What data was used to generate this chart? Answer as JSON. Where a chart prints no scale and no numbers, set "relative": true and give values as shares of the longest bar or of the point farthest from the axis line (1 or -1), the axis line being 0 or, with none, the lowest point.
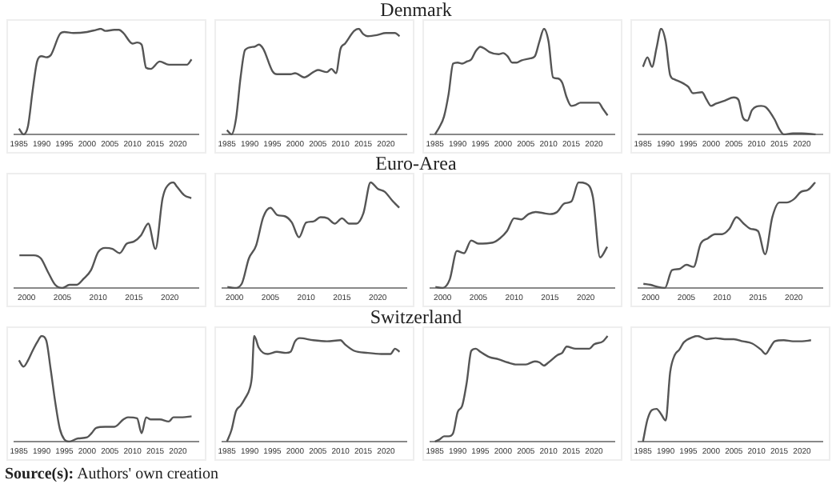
{
  "chart_data": [
    {
      "type": "line",
      "relative": true,
      "xlim": [
        1984,
        2024.5
      ],
      "xticks": [
        1985,
        1990,
        1995,
        2000,
        2005,
        2010,
        2015,
        2020
      ],
      "tick_labels": "x",
      "grid": false,
      "legend": false,
      "marker": "none",
      "series": [
        {
          "color": "#555555",
          "x": [
            1985,
            1986,
            1987,
            1988,
            1989,
            1990,
            1991,
            1992,
            1994,
            1995,
            1997,
            2000,
            2002,
            2003,
            2004,
            2006,
            2007,
            2008,
            2010,
            2011,
            2012,
            2013,
            2014,
            2016,
            2018,
            2020,
            2022,
            2023
          ],
          "values": [
            0.055,
            0,
            0.08,
            0.41,
            0.69,
            0.74,
            0.73,
            0.75,
            0.95,
            0.97,
            0.96,
            0.97,
            0.99,
            1,
            0.98,
            0.99,
            0.99,
            0.96,
            0.86,
            0.87,
            0.85,
            0.63,
            0.62,
            0.69,
            0.66,
            0.66,
            0.66,
            0.71
          ]
        }
      ]
    },
    {
      "type": "line",
      "title": "Denmark",
      "relative": true,
      "xlim": [
        1984,
        2024.5
      ],
      "xticks": [
        1985,
        1990,
        1995,
        2000,
        2005,
        2010,
        2015,
        2020
      ],
      "tick_labels": "x",
      "grid": false,
      "legend": false,
      "marker": "none",
      "series": [
        {
          "color": "#555555",
          "x": [
            1985,
            1986,
            1987,
            1988,
            1989,
            1991,
            1992,
            1993,
            1995,
            1996,
            1999,
            2000,
            2002,
            2004,
            2005,
            2007,
            2008,
            2009,
            2010,
            2011,
            2013,
            2014,
            2015,
            2016,
            2018,
            2020,
            2022,
            2023
          ],
          "values": [
            0.04,
            0,
            0.15,
            0.54,
            0.8,
            0.83,
            0.85,
            0.81,
            0.6,
            0.57,
            0.57,
            0.58,
            0.54,
            0.59,
            0.61,
            0.59,
            0.62,
            0.58,
            0.81,
            0.86,
            0.98,
            1,
            0.95,
            0.93,
            0.94,
            0.96,
            0.96,
            0.93
          ]
        }
      ]
    },
    {
      "type": "line",
      "relative": true,
      "xlim": [
        1984,
        2024.5
      ],
      "xticks": [
        1985,
        1990,
        1995,
        2000,
        2005,
        2010,
        2015,
        2020
      ],
      "tick_labels": "x",
      "grid": false,
      "legend": false,
      "marker": "none",
      "series": [
        {
          "color": "#555555",
          "x": [
            1985,
            1986,
            1987,
            1988,
            1989,
            1990,
            1991,
            1992,
            1993,
            1994,
            1995,
            1996,
            1997,
            1999,
            2000,
            2001,
            2002,
            2003,
            2004,
            2006,
            2007,
            2008,
            2009,
            2010,
            2011,
            2012,
            2013,
            2014,
            2015,
            2016,
            2017,
            2019,
            2021,
            2022,
            2023
          ],
          "values": [
            0,
            0.07,
            0.17,
            0.38,
            0.67,
            0.68,
            0.67,
            0.69,
            0.71,
            0.79,
            0.83,
            0.81,
            0.78,
            0.76,
            0.77,
            0.74,
            0.68,
            0.68,
            0.7,
            0.72,
            0.74,
            0.88,
            1,
            0.88,
            0.54,
            0.53,
            0.49,
            0.35,
            0.27,
            0.28,
            0.3,
            0.3,
            0.3,
            0.24,
            0.18
          ]
        }
      ]
    },
    {
      "type": "line",
      "relative": true,
      "xlim": [
        1984,
        2024.5
      ],
      "xticks": [
        1985,
        1990,
        1995,
        2000,
        2005,
        2010,
        2015,
        2020
      ],
      "tick_labels": "x",
      "grid": false,
      "legend": false,
      "marker": "none",
      "series": [
        {
          "color": "#555555",
          "x": [
            1985,
            1986,
            1987,
            1988,
            1989,
            1990,
            1991,
            1992,
            1994,
            1995,
            1996,
            1998,
            1999,
            2000,
            2001,
            2003,
            2005,
            2006,
            2007,
            2008,
            2009,
            2011,
            2012,
            2014,
            2015,
            2016,
            2018,
            2020,
            2023
          ],
          "values": [
            0.64,
            0.73,
            0.64,
            0.82,
            1,
            0.88,
            0.56,
            0.52,
            0.48,
            0.45,
            0.39,
            0.4,
            0.33,
            0.27,
            0.29,
            0.32,
            0.35,
            0.33,
            0.16,
            0.13,
            0.23,
            0.27,
            0.26,
            0.14,
            0.05,
            0,
            0.01,
            0.01,
            0
          ]
        }
      ]
    },
    {
      "type": "line",
      "relative": true,
      "xlim": [
        1998.3,
        2024
      ],
      "xticks": [
        2000,
        2005,
        2010,
        2015,
        2020
      ],
      "tick_labels": "x",
      "grid": false,
      "legend": false,
      "marker": "none",
      "series": [
        {
          "color": "#555555",
          "x": [
            1999,
            2000,
            2001,
            2002,
            2003,
            2004,
            2005,
            2006,
            2007,
            2008,
            2009,
            2010,
            2011,
            2012,
            2013,
            2014,
            2015,
            2016,
            2017,
            2018,
            2019,
            2020,
            2020.5,
            2021,
            2022,
            2023
          ],
          "values": [
            0.31,
            0.31,
            0.31,
            0.28,
            0.15,
            0.03,
            0,
            0.03,
            0.03,
            0.09,
            0.17,
            0.34,
            0.38,
            0.37,
            0.33,
            0.42,
            0.44,
            0.5,
            0.61,
            0.37,
            0.85,
            0.99,
            1,
            0.96,
            0.88,
            0.85
          ]
        }
      ]
    },
    {
      "type": "line",
      "title": "Euro-Area",
      "relative": true,
      "xlim": [
        1998.3,
        2024
      ],
      "xticks": [
        2000,
        2005,
        2010,
        2015,
        2020
      ],
      "tick_labels": "x",
      "grid": false,
      "legend": false,
      "marker": "none",
      "series": [
        {
          "color": "#555555",
          "x": [
            1999,
            2000,
            2001,
            2002,
            2003,
            2004,
            2005,
            2006,
            2007,
            2008,
            2009,
            2010,
            2011,
            2012,
            2013,
            2014,
            2015,
            2016,
            2017,
            2018,
            2019,
            2020,
            2021,
            2022,
            2023
          ],
          "values": [
            0.01,
            0,
            0.04,
            0.28,
            0.4,
            0.67,
            0.76,
            0.69,
            0.68,
            0.62,
            0.48,
            0.62,
            0.63,
            0.67,
            0.66,
            0.61,
            0.66,
            0.61,
            0.61,
            0.71,
            1,
            0.94,
            0.91,
            0.83,
            0.76
          ]
        }
      ]
    },
    {
      "type": "line",
      "relative": true,
      "xlim": [
        1998.3,
        2024
      ],
      "xticks": [
        2000,
        2005,
        2010,
        2015,
        2020
      ],
      "tick_labels": "x",
      "grid": false,
      "legend": false,
      "marker": "none",
      "series": [
        {
          "color": "#555555",
          "x": [
            1999,
            2000,
            2001,
            2002,
            2003,
            2004,
            2005,
            2007,
            2008,
            2009,
            2010,
            2011,
            2012,
            2013,
            2014,
            2015,
            2016,
            2017,
            2018,
            2019,
            2020,
            2021,
            2022,
            2023
          ],
          "values": [
            0.01,
            0,
            0.08,
            0.35,
            0.33,
            0.45,
            0.42,
            0.43,
            0.47,
            0.54,
            0.66,
            0.65,
            0.7,
            0.72,
            0.71,
            0.7,
            0.72,
            0.8,
            0.82,
            1,
            0.99,
            0.86,
            0.29,
            0.39
          ]
        }
      ]
    },
    {
      "type": "line",
      "relative": true,
      "xlim": [
        1998.3,
        2024
      ],
      "xticks": [
        2000,
        2005,
        2010,
        2015,
        2020
      ],
      "tick_labels": "x",
      "grid": false,
      "legend": false,
      "marker": "none",
      "series": [
        {
          "color": "#555555",
          "x": [
            1999,
            2000,
            2001,
            2002,
            2003,
            2004,
            2005,
            2006,
            2007,
            2008,
            2009,
            2010,
            2011,
            2012,
            2013,
            2014,
            2015,
            2016,
            2017,
            2018,
            2019,
            2020,
            2021,
            2022,
            2023
          ],
          "values": [
            0.04,
            0.03,
            0.01,
            0,
            0.17,
            0.18,
            0.22,
            0.2,
            0.42,
            0.47,
            0.51,
            0.51,
            0.56,
            0.67,
            0.61,
            0.56,
            0.54,
            0.32,
            0.67,
            0.81,
            0.81,
            0.84,
            0.91,
            0.93,
            1
          ]
        }
      ]
    },
    {
      "type": "line",
      "relative": true,
      "xlim": [
        1984,
        2024.5
      ],
      "xticks": [
        1985,
        1990,
        1995,
        2000,
        2005,
        2010,
        2015,
        2020
      ],
      "tick_labels": "x",
      "grid": false,
      "legend": false,
      "marker": "none",
      "annotations": [
        "Source(s): Authors' own creation"
      ],
      "series": [
        {
          "color": "#555555",
          "x": [
            1985,
            1986,
            1987,
            1988,
            1989,
            1990,
            1991,
            1992,
            1993,
            1994,
            1995,
            1996,
            1998,
            2000,
            2001,
            2002,
            2004,
            2006,
            2008,
            2009,
            2011,
            2012,
            2013,
            2014,
            2016,
            2018,
            2019,
            2021,
            2023
          ],
          "values": [
            0.77,
            0.71,
            0.77,
            0.86,
            0.94,
            1,
            0.96,
            0.68,
            0.37,
            0.12,
            0.02,
            0,
            0.03,
            0.04,
            0.08,
            0.13,
            0.14,
            0.14,
            0.21,
            0.23,
            0.22,
            0.08,
            0.23,
            0.21,
            0.21,
            0.19,
            0.23,
            0.23,
            0.24
          ]
        }
      ]
    },
    {
      "type": "line",
      "title": "Switzerland",
      "relative": true,
      "xlim": [
        1984,
        2024.5
      ],
      "xticks": [
        1985,
        1990,
        1995,
        2000,
        2005,
        2010,
        2015,
        2020
      ],
      "tick_labels": "x",
      "grid": false,
      "legend": false,
      "marker": "none",
      "series": [
        {
          "color": "#555555",
          "x": [
            1985,
            1986,
            1987,
            1988,
            1989,
            1990,
            1990.5,
            1991,
            1992,
            1993,
            1994,
            1996,
            1998,
            1999,
            2000,
            2001,
            2004,
            2007,
            2010,
            2011,
            2013,
            2016,
            2019,
            2021,
            2022,
            2023
          ],
          "values": [
            0,
            0.11,
            0.29,
            0.34,
            0.41,
            0.5,
            0.62,
            1,
            0.89,
            0.84,
            0.83,
            0.85,
            0.84,
            0.85,
            0.95,
            0.98,
            0.96,
            0.95,
            0.96,
            0.92,
            0.86,
            0.84,
            0.83,
            0.83,
            0.88,
            0.85
          ]
        }
      ]
    },
    {
      "type": "line",
      "relative": true,
      "xlim": [
        1984,
        2024.5
      ],
      "xticks": [
        1985,
        1990,
        1995,
        2000,
        2005,
        2010,
        2015,
        2020
      ],
      "tick_labels": "x",
      "grid": false,
      "legend": false,
      "marker": "none",
      "series": [
        {
          "color": "#555555",
          "x": [
            1985,
            1986,
            1987,
            1988,
            1989,
            1990,
            1991,
            1992,
            1993,
            1994,
            1995,
            1997,
            1999,
            2001,
            2003,
            2005,
            2007,
            2008,
            2009,
            2010,
            2012,
            2013,
            2014,
            2016,
            2018,
            2019,
            2020,
            2022,
            2023
          ],
          "values": [
            0,
            0.02,
            0.05,
            0.05,
            0.08,
            0.28,
            0.34,
            0.56,
            0.86,
            0.88,
            0.85,
            0.8,
            0.78,
            0.75,
            0.73,
            0.73,
            0.76,
            0.75,
            0.72,
            0.75,
            0.82,
            0.84,
            0.9,
            0.88,
            0.88,
            0.88,
            0.92,
            0.95,
            1
          ]
        }
      ]
    },
    {
      "type": "line",
      "relative": true,
      "xlim": [
        1984,
        2024.5
      ],
      "xticks": [
        1985,
        1990,
        1995,
        2000,
        2005,
        2010,
        2015,
        2020
      ],
      "tick_labels": "x",
      "grid": false,
      "legend": false,
      "marker": "none",
      "series": [
        {
          "color": "#555555",
          "x": [
            1985,
            1986,
            1987,
            1988,
            1989,
            1990,
            1991,
            1992,
            1993,
            1994,
            1996,
            1997,
            1999,
            2001,
            2003,
            2005,
            2007,
            2009,
            2011,
            2012,
            2013,
            2014,
            2016,
            2018,
            2020,
            2022
          ],
          "values": [
            0,
            0.21,
            0.3,
            0.31,
            0.26,
            0.2,
            0.66,
            0.82,
            0.87,
            0.94,
            0.99,
            1,
            0.97,
            0.98,
            0.97,
            0.97,
            0.95,
            0.93,
            0.87,
            0.83,
            0.89,
            0.95,
            0.96,
            0.95,
            0.95,
            0.96
          ]
        }
      ]
    }
  ]
}
